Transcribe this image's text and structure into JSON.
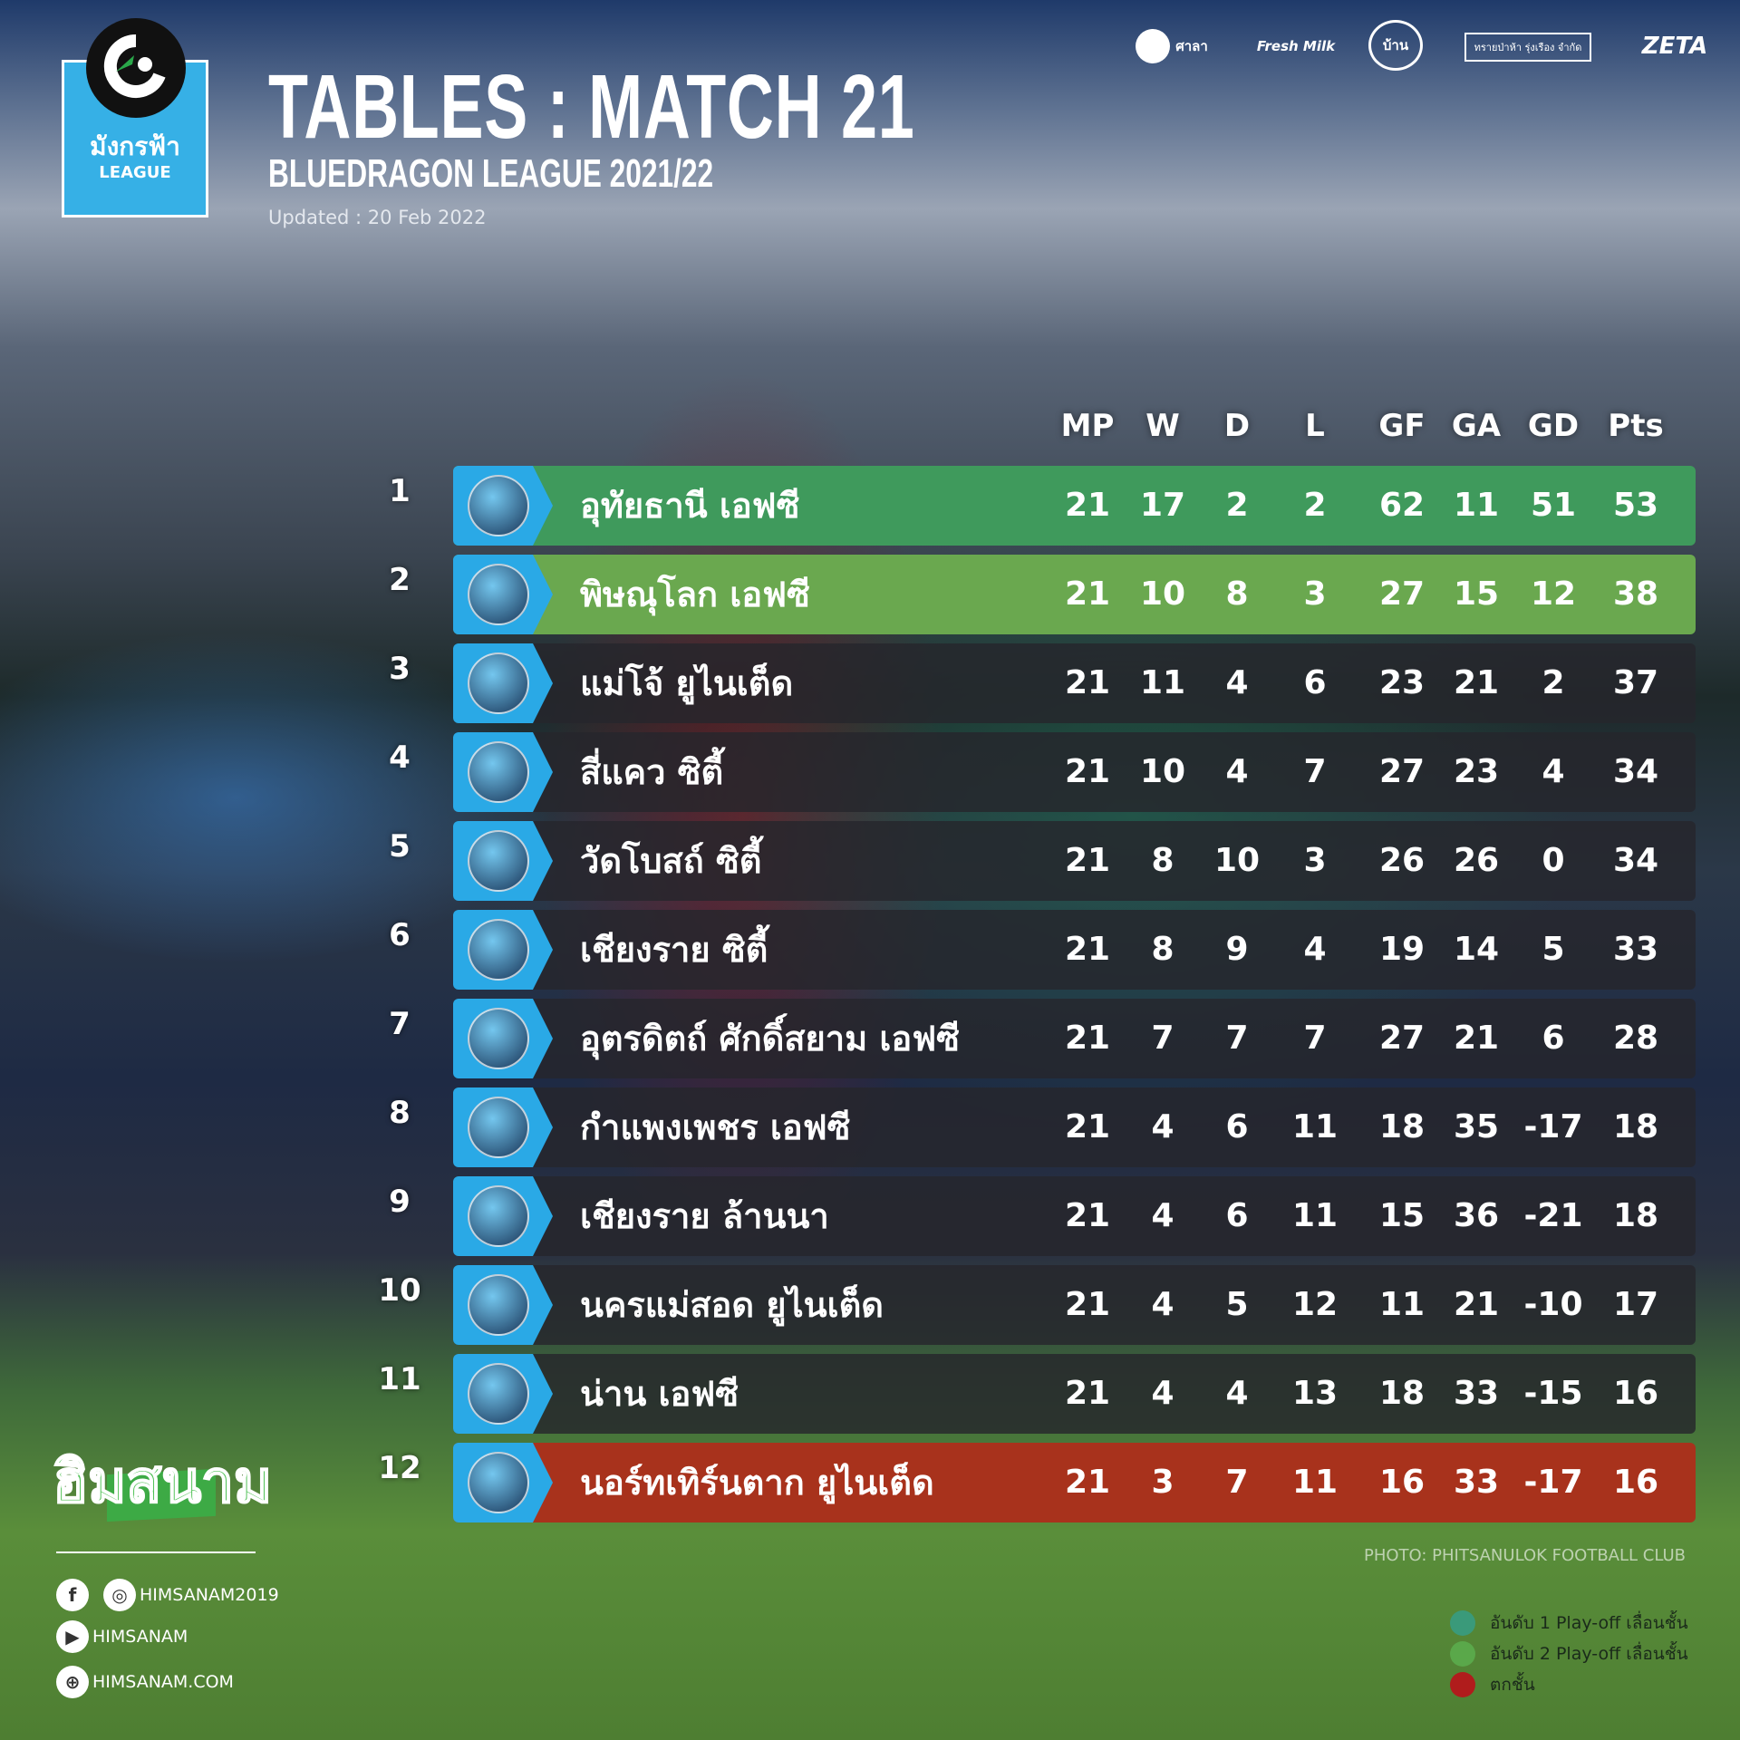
{
  "header": {
    "league_logo_thai": "มังกรฟ้า",
    "league_logo_en": "LEAGUE",
    "title": "TABLES : MATCH 21",
    "subtitle": "BLUEDRAGON LEAGUE 2021/22",
    "updated": "Updated : 20 Feb 2022"
  },
  "sponsors": [
    "ศาลา",
    "Fresh Milk",
    "บ้าน",
    "ทรายป่าห้า รุ่งเรือง จำกัด",
    "ZETA"
  ],
  "table": {
    "columns": [
      "MP",
      "W",
      "D",
      "L",
      "GF",
      "GA",
      "GD",
      "Pts"
    ],
    "rows": [
      {
        "rank": "1",
        "team": "อุทัยธานี เอฟซี",
        "stats": [
          "21",
          "17",
          "2",
          "2",
          "62",
          "11",
          "51",
          "53"
        ],
        "status": "playoff1"
      },
      {
        "rank": "2",
        "team": "พิษณุโลก เอฟซี",
        "stats": [
          "21",
          "10",
          "8",
          "3",
          "27",
          "15",
          "12",
          "38"
        ],
        "status": "playoff2"
      },
      {
        "rank": "3",
        "team": "แม่โจ้ ยูไนเต็ด",
        "stats": [
          "21",
          "11",
          "4",
          "6",
          "23",
          "21",
          "2",
          "37"
        ],
        "status": "normal"
      },
      {
        "rank": "4",
        "team": "สี่แคว ซิตี้",
        "stats": [
          "21",
          "10",
          "4",
          "7",
          "27",
          "23",
          "4",
          "34"
        ],
        "status": "normal"
      },
      {
        "rank": "5",
        "team": "วัดโบสถ์ ซิตี้",
        "stats": [
          "21",
          "8",
          "10",
          "3",
          "26",
          "26",
          "0",
          "34"
        ],
        "status": "normal"
      },
      {
        "rank": "6",
        "team": "เชียงราย ซิตี้",
        "stats": [
          "21",
          "8",
          "9",
          "4",
          "19",
          "14",
          "5",
          "33"
        ],
        "status": "normal"
      },
      {
        "rank": "7",
        "team": "อุตรดิตถ์ ศักดิ์สยาม เอฟซี",
        "stats": [
          "21",
          "7",
          "7",
          "7",
          "27",
          "21",
          "6",
          "28"
        ],
        "status": "normal"
      },
      {
        "rank": "8",
        "team": "กำแพงเพชร เอฟซี",
        "stats": [
          "21",
          "4",
          "6",
          "11",
          "18",
          "35",
          "-17",
          "18"
        ],
        "status": "normal"
      },
      {
        "rank": "9",
        "team": "เชียงราย ล้านนา",
        "stats": [
          "21",
          "4",
          "6",
          "11",
          "15",
          "36",
          "-21",
          "18"
        ],
        "status": "normal"
      },
      {
        "rank": "10",
        "team": "นครแม่สอด ยูไนเต็ด",
        "stats": [
          "21",
          "4",
          "5",
          "12",
          "11",
          "21",
          "-10",
          "17"
        ],
        "status": "normal"
      },
      {
        "rank": "11",
        "team": "น่าน เอฟซี",
        "stats": [
          "21",
          "4",
          "4",
          "13",
          "18",
          "33",
          "-15",
          "16"
        ],
        "status": "normal"
      },
      {
        "rank": "12",
        "team": "นอร์ทเทิร์นตาก ยูไนเต็ด",
        "stats": [
          "21",
          "3",
          "7",
          "11",
          "16",
          "33",
          "-17",
          "16"
        ],
        "status": "relegation"
      }
    ]
  },
  "colors": {
    "playoff1": "#3f9a5c",
    "playoff2": "#6aa84f",
    "normal": "rgba(38,38,44,0.82)",
    "relegation": "#a8321c",
    "badge": "#2aa9e6"
  },
  "photo_credit": "PHOTO: PHITSANULOK FOOTBALL CLUB",
  "legend": [
    {
      "label": "อันดับ 1 Play-off เลื่อนชั้น",
      "color": "#3a9a7a"
    },
    {
      "label": "อันดับ 2 Play-off เลื่อนชั้น",
      "color": "#5aa84a"
    },
    {
      "label": "ตกชั้น",
      "color": "#b01c1c"
    }
  ],
  "footer": {
    "brand_logo": "ฮิมสนาม",
    "social": [
      {
        "icons": [
          "facebook-icon",
          "instagram-icon"
        ],
        "handle": "HIMSANAM2019"
      },
      {
        "icons": [
          "youtube-icon"
        ],
        "handle": "HIMSANAM"
      },
      {
        "icons": [
          "globe-icon"
        ],
        "handle": "HIMSANAM.COM"
      }
    ]
  }
}
